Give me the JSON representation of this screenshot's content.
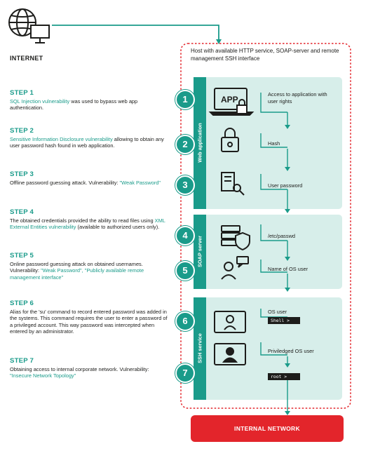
{
  "internet": {
    "label": "INTERNET"
  },
  "host": {
    "title": "Host with available HTTP service, SOAP-server and remote management SSH interface"
  },
  "panels": {
    "web": "Web application",
    "soap": "SOAP server",
    "ssh": "SSH service"
  },
  "steps": [
    {
      "title": "STEP 1",
      "parts": [
        {
          "text": "SQL Injection vulnerability",
          "highlight": true
        },
        {
          "text": " was used to bypass web app authentication.",
          "highlight": false
        }
      ]
    },
    {
      "title": "STEP 2",
      "parts": [
        {
          "text": "Sensitive Information Disclosure vulnerability",
          "highlight": true
        },
        {
          "text": " allowing to obtain any user password hash found in web application.",
          "highlight": false
        }
      ]
    },
    {
      "title": "STEP 3",
      "parts": [
        {
          "text": "Offline password guessing attack. Vulnerability: ",
          "highlight": false
        },
        {
          "text": "\"Weak Password\"",
          "highlight": true
        }
      ]
    },
    {
      "title": "STEP 4",
      "parts": [
        {
          "text": "The obtained credentials provided the ability to read files using ",
          "highlight": false
        },
        {
          "text": "XML External Entities vulnerability",
          "highlight": true
        },
        {
          "text": " (available to authorized users only).",
          "highlight": false
        }
      ]
    },
    {
      "title": "STEP 5",
      "parts": [
        {
          "text": "Online password guessing attack on obtained usernames. Vulnerability: ",
          "highlight": false
        },
        {
          "text": "\"Weak Password\", \"Publicly available remote management interface\"",
          "highlight": true
        }
      ]
    },
    {
      "title": "STEP 6",
      "parts": [
        {
          "text": "Alias for the 'su' command to record entered password was added in the systems. This command requires the user to enter a password of a privileged account. This way password was intercepted when entered by an administrator.",
          "highlight": false
        }
      ]
    },
    {
      "title": "STEP 7",
      "parts": [
        {
          "text": "Obtaining access to internal corporate network. Vulnerability: ",
          "highlight": false
        },
        {
          "text": "\"Insecure Network Topology\"",
          "highlight": true
        }
      ]
    }
  ],
  "numbers": [
    "1",
    "2",
    "3",
    "4",
    "5",
    "6",
    "7"
  ],
  "flow": {
    "access": "Access to application with user rights",
    "hash": "Hash",
    "user_password": "User password",
    "passwd": "/etc/passwd",
    "os_user_name": "Name of OS user",
    "os_user": "OS user",
    "shell": "Shell >",
    "privileged": "Priviledged OS user",
    "root": "root >"
  },
  "icons": {
    "app_text": "APP"
  },
  "internal_network": "INTERNAL NETWORK",
  "colors": {
    "teal": "#1a9b8a",
    "panel_bg": "#d7eeea",
    "red": "#e3252b"
  }
}
